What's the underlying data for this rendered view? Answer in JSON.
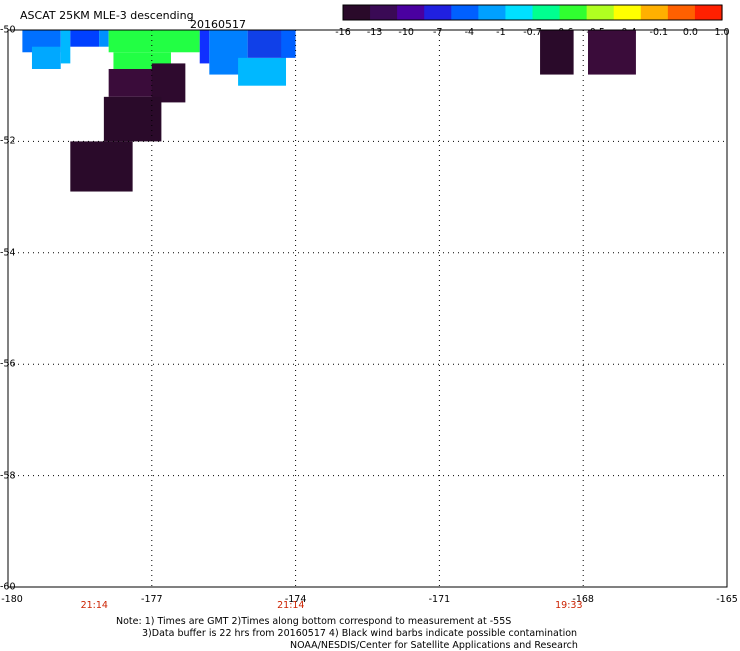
{
  "header": {
    "title": "ASCAT 25KM MLE-3 descending",
    "date": "20160517"
  },
  "colorbar": {
    "labels": [
      "-16",
      "-13",
      "-10",
      "-7",
      "-4",
      "-1",
      "-0.7",
      "-0.6",
      "-0.5",
      "-0.4",
      "-0.1",
      "0.0",
      "1.0"
    ],
    "colors": [
      "#2a0a2a",
      "#3a0a55",
      "#4a00a0",
      "#2020e0",
      "#0060ff",
      "#00a0ff",
      "#00e0ff",
      "#00ff90",
      "#30ff30",
      "#b0ff20",
      "#ffff00",
      "#ffb000",
      "#ff6000",
      "#ff2000"
    ]
  },
  "map": {
    "lon_range": [
      -180,
      -165
    ],
    "lat_range": [
      -60,
      -50
    ],
    "x_ticks": [
      "-180",
      "-177",
      "-174",
      "-171",
      "-168",
      "-165"
    ],
    "y_ticks": [
      "-50",
      "-52",
      "-54",
      "-56",
      "-58",
      "-60"
    ],
    "time_labels": [
      {
        "text": "21:14",
        "lon": -178.2
      },
      {
        "text": "21:14",
        "lon": -174.1
      },
      {
        "text": "19:33",
        "lon": -168.3
      }
    ],
    "cells": [
      {
        "lon0": -179.7,
        "lon1": -178.9,
        "lat0": -50.4,
        "lat1": -50.0,
        "color": "#0070ff"
      },
      {
        "lon0": -179.5,
        "lon1": -178.9,
        "lat0": -50.7,
        "lat1": -50.3,
        "color": "#00a8ff"
      },
      {
        "lon0": -178.9,
        "lon1": -178.7,
        "lat0": -50.6,
        "lat1": -50.0,
        "color": "#00b8ff"
      },
      {
        "lon0": -178.7,
        "lon1": -178.1,
        "lat0": -50.3,
        "lat1": -50.0,
        "color": "#0040ff"
      },
      {
        "lon0": -178.1,
        "lon1": -177.9,
        "lat0": -50.3,
        "lat1": -50.0,
        "color": "#0090ff"
      },
      {
        "lon0": -177.9,
        "lon1": -176.0,
        "lat0": -50.4,
        "lat1": -50.0,
        "color": "#22ff44"
      },
      {
        "lon0": -177.8,
        "lon1": -176.6,
        "lat0": -50.7,
        "lat1": -50.4,
        "color": "#22ff44"
      },
      {
        "lon0": -176.0,
        "lon1": -175.8,
        "lat0": -50.6,
        "lat1": -50.0,
        "color": "#1030ff"
      },
      {
        "lon0": -175.8,
        "lon1": -175.0,
        "lat0": -50.8,
        "lat1": -50.0,
        "color": "#0080ff"
      },
      {
        "lon0": -175.2,
        "lon1": -174.2,
        "lat0": -51.0,
        "lat1": -50.5,
        "color": "#00b8ff"
      },
      {
        "lon0": -175.0,
        "lon1": -174.2,
        "lat0": -50.5,
        "lat1": -50.0,
        "color": "#1040e8"
      },
      {
        "lon0": -174.3,
        "lon1": -174.0,
        "lat0": -50.5,
        "lat1": -50.0,
        "color": "#0060ff"
      },
      {
        "lon0": -177.9,
        "lon1": -176.6,
        "lat0": -51.2,
        "lat1": -50.7,
        "color": "#3a0c3a"
      },
      {
        "lon0": -177.0,
        "lon1": -176.3,
        "lat0": -51.3,
        "lat1": -50.6,
        "color": "#2e0a2e"
      },
      {
        "lon0": -178.0,
        "lon1": -176.8,
        "lat0": -52.0,
        "lat1": -51.2,
        "color": "#2a0a2a"
      },
      {
        "lon0": -178.7,
        "lon1": -177.4,
        "lat0": -52.9,
        "lat1": -52.0,
        "color": "#2a0a2a"
      },
      {
        "lon0": -168.9,
        "lon1": -168.2,
        "lat0": -50.8,
        "lat1": -50.0,
        "color": "#2a0a2a"
      },
      {
        "lon0": -167.9,
        "lon1": -166.9,
        "lat0": -50.8,
        "lat1": -50.0,
        "color": "#3a0c3a"
      }
    ]
  },
  "notes": {
    "line1": "Note: 1) Times are GMT 2)Times along bottom correspond to measurement at -55S",
    "line2": "3)Data buffer is 22 hrs from 20160517 4) Black wind barbs indicate possible contamination",
    "line3": "NOAA/NESDIS/Center for Satellite Applications and Research"
  }
}
